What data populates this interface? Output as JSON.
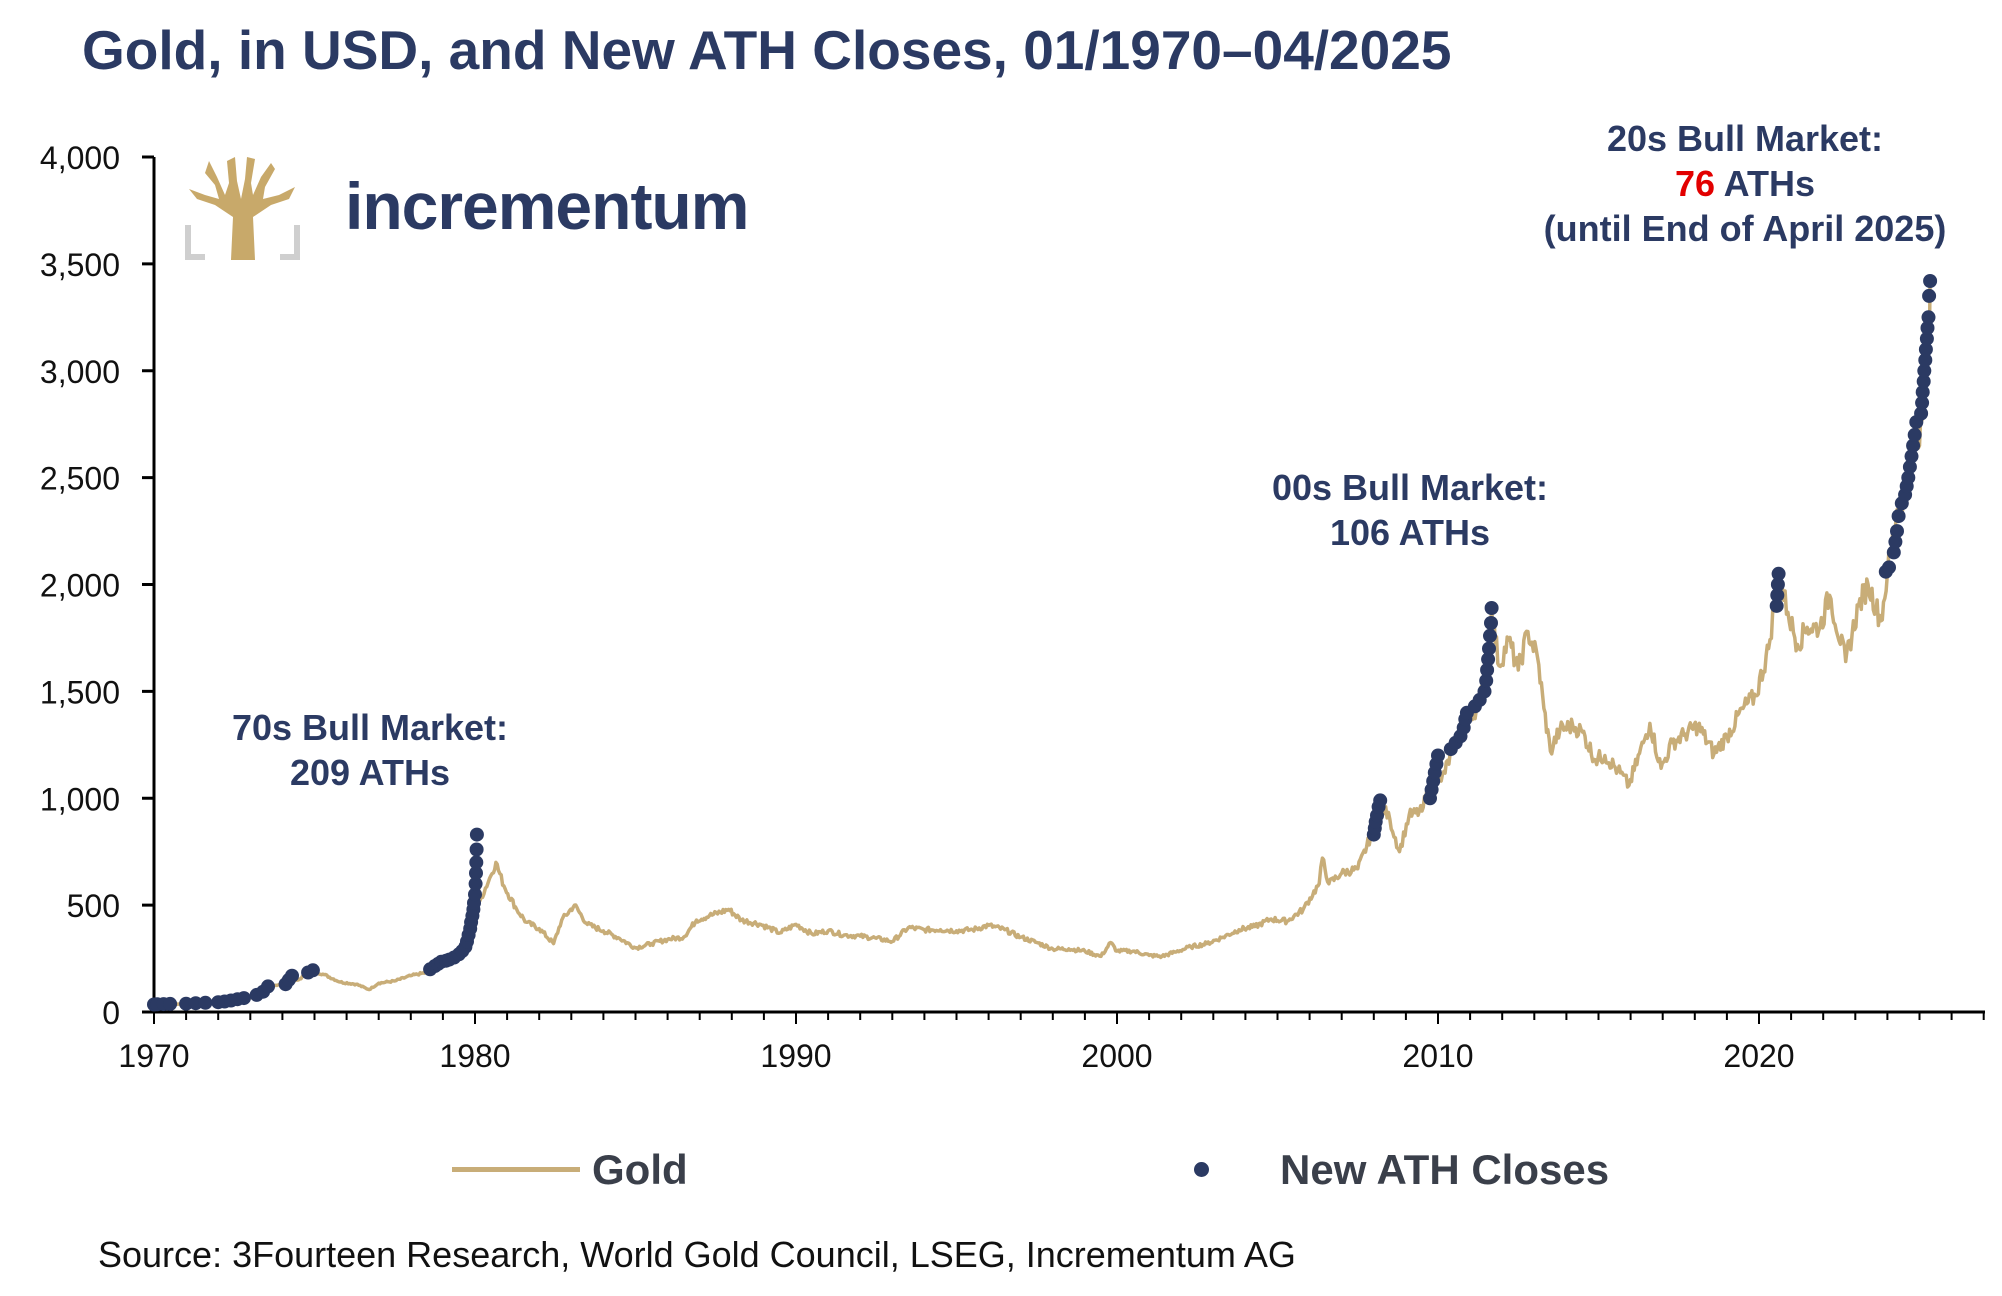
{
  "title": "Gold, in USD, and New ATH Closes, 01/1970–04/2025",
  "source": "Source: 3Fourteen Research, World Gold Council, LSEG, Incrementum AG",
  "logo": {
    "brand": "incrementum"
  },
  "colors": {
    "gold": "#c8ad78",
    "ath": "#2b3a63",
    "title": "#2b3a63",
    "highlight": "#e20000"
  },
  "annotations": {
    "bull70s": {
      "line1": "70s Bull Market:",
      "line2": "209 ATHs"
    },
    "bull00s": {
      "line1": "00s Bull Market:",
      "line2": "106 ATHs"
    },
    "bull20s": {
      "line1": "20s Bull Market:",
      "count": "76",
      "count_suffix": " ATHs",
      "line3": "(until End of April 2025)"
    }
  },
  "legend": {
    "gold": "Gold",
    "ath": "New ATH Closes"
  },
  "chart_data": {
    "type": "line",
    "x_range": [
      1970,
      2027
    ],
    "ylim": [
      0,
      4000
    ],
    "y_ticks": [
      0,
      500,
      1000,
      1500,
      2000,
      2500,
      3000,
      3500,
      4000
    ],
    "y_tick_labels": [
      "0",
      "500",
      "1,000",
      "1,500",
      "2,000",
      "2,500",
      "3,000",
      "3,500",
      "4,000"
    ],
    "x_ticks": [
      1970,
      1980,
      1990,
      2000,
      2010,
      2020
    ],
    "x_tick_labels": [
      "1970",
      "1980",
      "1990",
      "2000",
      "2010",
      "2020"
    ],
    "grid": false,
    "legend_position": "bottom",
    "series": [
      {
        "name": "Gold",
        "type": "line",
        "points": [
          [
            1970.0,
            35
          ],
          [
            1970.5,
            36
          ],
          [
            1971.0,
            38
          ],
          [
            1971.5,
            41
          ],
          [
            1972.0,
            46
          ],
          [
            1972.5,
            65
          ],
          [
            1973.0,
            66
          ],
          [
            1973.5,
            120
          ],
          [
            1974.0,
            130
          ],
          [
            1974.5,
            150
          ],
          [
            1974.9,
            195
          ],
          [
            1975.3,
            175
          ],
          [
            1975.8,
            140
          ],
          [
            1976.3,
            130
          ],
          [
            1976.7,
            105
          ],
          [
            1977.0,
            135
          ],
          [
            1977.5,
            145
          ],
          [
            1978.0,
            170
          ],
          [
            1978.5,
            185
          ],
          [
            1978.9,
            225
          ],
          [
            1979.3,
            245
          ],
          [
            1979.6,
            300
          ],
          [
            1979.85,
            420
          ],
          [
            1980.05,
            650
          ],
          [
            1980.15,
            520
          ],
          [
            1980.5,
            640
          ],
          [
            1980.65,
            700
          ],
          [
            1980.9,
            590
          ],
          [
            1981.3,
            480
          ],
          [
            1981.6,
            420
          ],
          [
            1982.0,
            390
          ],
          [
            1982.45,
            320
          ],
          [
            1982.7,
            430
          ],
          [
            1983.1,
            500
          ],
          [
            1983.5,
            410
          ],
          [
            1984.0,
            380
          ],
          [
            1984.5,
            345
          ],
          [
            1985.0,
            300
          ],
          [
            1985.5,
            320
          ],
          [
            1986.0,
            340
          ],
          [
            1986.5,
            350
          ],
          [
            1986.9,
            430
          ],
          [
            1987.3,
            450
          ],
          [
            1987.9,
            480
          ],
          [
            1988.3,
            430
          ],
          [
            1988.9,
            410
          ],
          [
            1989.5,
            370
          ],
          [
            1990.0,
            410
          ],
          [
            1990.5,
            365
          ],
          [
            1991.0,
            380
          ],
          [
            1991.5,
            360
          ],
          [
            1992.0,
            355
          ],
          [
            1992.5,
            345
          ],
          [
            1993.0,
            330
          ],
          [
            1993.5,
            395
          ],
          [
            1994.0,
            385
          ],
          [
            1994.5,
            385
          ],
          [
            1995.0,
            380
          ],
          [
            1995.5,
            385
          ],
          [
            1996.0,
            405
          ],
          [
            1996.5,
            385
          ],
          [
            1997.0,
            350
          ],
          [
            1997.5,
            325
          ],
          [
            1998.0,
            295
          ],
          [
            1998.5,
            295
          ],
          [
            1999.0,
            285
          ],
          [
            1999.5,
            260
          ],
          [
            1999.8,
            325
          ],
          [
            2000.0,
            285
          ],
          [
            2000.5,
            285
          ],
          [
            2001.0,
            265
          ],
          [
            2001.4,
            260
          ],
          [
            2001.8,
            280
          ],
          [
            2002.3,
            305
          ],
          [
            2002.8,
            320
          ],
          [
            2003.3,
            350
          ],
          [
            2003.8,
            385
          ],
          [
            2004.3,
            400
          ],
          [
            2004.8,
            435
          ],
          [
            2005.3,
            425
          ],
          [
            2005.8,
            480
          ],
          [
            2006.3,
            600
          ],
          [
            2006.4,
            720
          ],
          [
            2006.6,
            600
          ],
          [
            2007.0,
            650
          ],
          [
            2007.5,
            670
          ],
          [
            2007.9,
            820
          ],
          [
            2008.2,
            980
          ],
          [
            2008.5,
            900
          ],
          [
            2008.8,
            750
          ],
          [
            2009.1,
            920
          ],
          [
            2009.5,
            940
          ],
          [
            2009.9,
            1150
          ],
          [
            2010.1,
            1080
          ],
          [
            2010.5,
            1240
          ],
          [
            2010.9,
            1380
          ],
          [
            2011.2,
            1420
          ],
          [
            2011.5,
            1560
          ],
          [
            2011.67,
            1890
          ],
          [
            2011.9,
            1620
          ],
          [
            2012.2,
            1740
          ],
          [
            2012.5,
            1600
          ],
          [
            2012.8,
            1780
          ],
          [
            2013.1,
            1660
          ],
          [
            2013.3,
            1420
          ],
          [
            2013.5,
            1220
          ],
          [
            2013.8,
            1320
          ],
          [
            2014.2,
            1340
          ],
          [
            2014.5,
            1310
          ],
          [
            2014.9,
            1180
          ],
          [
            2015.2,
            1200
          ],
          [
            2015.6,
            1130
          ],
          [
            2015.95,
            1060
          ],
          [
            2016.4,
            1260
          ],
          [
            2016.6,
            1350
          ],
          [
            2016.95,
            1140
          ],
          [
            2017.3,
            1260
          ],
          [
            2017.7,
            1300
          ],
          [
            2018.1,
            1340
          ],
          [
            2018.6,
            1210
          ],
          [
            2019.0,
            1290
          ],
          [
            2019.5,
            1420
          ],
          [
            2019.9,
            1480
          ],
          [
            2020.3,
            1700
          ],
          [
            2020.6,
            2050
          ],
          [
            2020.9,
            1870
          ],
          [
            2021.2,
            1720
          ],
          [
            2021.5,
            1800
          ],
          [
            2021.9,
            1800
          ],
          [
            2022.2,
            1950
          ],
          [
            2022.7,
            1640
          ],
          [
            2023.1,
            1900
          ],
          [
            2023.4,
            2000
          ],
          [
            2023.8,
            1830
          ],
          [
            2024.0,
            2050
          ],
          [
            2024.3,
            2350
          ],
          [
            2024.6,
            2450
          ],
          [
            2024.8,
            2700
          ],
          [
            2025.0,
            2650
          ],
          [
            2025.2,
            3000
          ],
          [
            2025.3,
            3200
          ],
          [
            2025.33,
            3420
          ]
        ]
      },
      {
        "name": "New ATH Closes",
        "type": "scatter",
        "points": [
          [
            1970.0,
            35
          ],
          [
            1970.1,
            36
          ],
          [
            1970.3,
            37
          ],
          [
            1970.5,
            38
          ],
          [
            1971.0,
            39
          ],
          [
            1971.3,
            41
          ],
          [
            1971.6,
            43
          ],
          [
            1972.0,
            46
          ],
          [
            1972.2,
            49
          ],
          [
            1972.4,
            54
          ],
          [
            1972.6,
            60
          ],
          [
            1972.8,
            65
          ],
          [
            1973.2,
            80
          ],
          [
            1973.4,
            95
          ],
          [
            1973.55,
            120
          ],
          [
            1974.1,
            130
          ],
          [
            1974.2,
            150
          ],
          [
            1974.3,
            170
          ],
          [
            1974.8,
            185
          ],
          [
            1974.95,
            195
          ],
          [
            1978.6,
            200
          ],
          [
            1978.75,
            215
          ],
          [
            1978.85,
            225
          ],
          [
            1978.95,
            235
          ],
          [
            1979.1,
            240
          ],
          [
            1979.2,
            245
          ],
          [
            1979.35,
            255
          ],
          [
            1979.5,
            270
          ],
          [
            1979.6,
            285
          ],
          [
            1979.7,
            305
          ],
          [
            1979.75,
            330
          ],
          [
            1979.8,
            360
          ],
          [
            1979.85,
            390
          ],
          [
            1979.88,
            420
          ],
          [
            1979.92,
            450
          ],
          [
            1979.95,
            480
          ],
          [
            1979.97,
            510
          ],
          [
            1980.0,
            550
          ],
          [
            1980.02,
            600
          ],
          [
            1980.03,
            650
          ],
          [
            1980.04,
            700
          ],
          [
            1980.05,
            760
          ],
          [
            1980.06,
            830
          ],
          [
            2008.0,
            830
          ],
          [
            2008.03,
            860
          ],
          [
            2008.06,
            890
          ],
          [
            2008.1,
            920
          ],
          [
            2008.15,
            960
          ],
          [
            2008.2,
            990
          ],
          [
            2009.75,
            1000
          ],
          [
            2009.8,
            1040
          ],
          [
            2009.85,
            1080
          ],
          [
            2009.9,
            1120
          ],
          [
            2009.95,
            1160
          ],
          [
            2010.0,
            1200
          ],
          [
            2010.4,
            1230
          ],
          [
            2010.55,
            1260
          ],
          [
            2010.7,
            1290
          ],
          [
            2010.8,
            1330
          ],
          [
            2010.85,
            1370
          ],
          [
            2010.9,
            1400
          ],
          [
            2011.15,
            1430
          ],
          [
            2011.3,
            1460
          ],
          [
            2011.45,
            1500
          ],
          [
            2011.5,
            1550
          ],
          [
            2011.53,
            1600
          ],
          [
            2011.56,
            1650
          ],
          [
            2011.59,
            1700
          ],
          [
            2011.62,
            1760
          ],
          [
            2011.65,
            1820
          ],
          [
            2011.67,
            1890
          ],
          [
            2020.55,
            1900
          ],
          [
            2020.57,
            1950
          ],
          [
            2020.59,
            2000
          ],
          [
            2020.61,
            2050
          ],
          [
            2023.95,
            2060
          ],
          [
            2024.05,
            2080
          ],
          [
            2024.2,
            2150
          ],
          [
            2024.25,
            2200
          ],
          [
            2024.3,
            2250
          ],
          [
            2024.35,
            2320
          ],
          [
            2024.45,
            2380
          ],
          [
            2024.55,
            2420
          ],
          [
            2024.6,
            2460
          ],
          [
            2024.65,
            2500
          ],
          [
            2024.7,
            2550
          ],
          [
            2024.75,
            2600
          ],
          [
            2024.8,
            2650
          ],
          [
            2024.85,
            2700
          ],
          [
            2024.9,
            2760
          ],
          [
            2025.05,
            2800
          ],
          [
            2025.08,
            2850
          ],
          [
            2025.1,
            2900
          ],
          [
            2025.13,
            2950
          ],
          [
            2025.15,
            3000
          ],
          [
            2025.18,
            3050
          ],
          [
            2025.2,
            3100
          ],
          [
            2025.23,
            3150
          ],
          [
            2025.25,
            3200
          ],
          [
            2025.28,
            3250
          ],
          [
            2025.3,
            3350
          ],
          [
            2025.33,
            3420
          ]
        ]
      }
    ]
  }
}
